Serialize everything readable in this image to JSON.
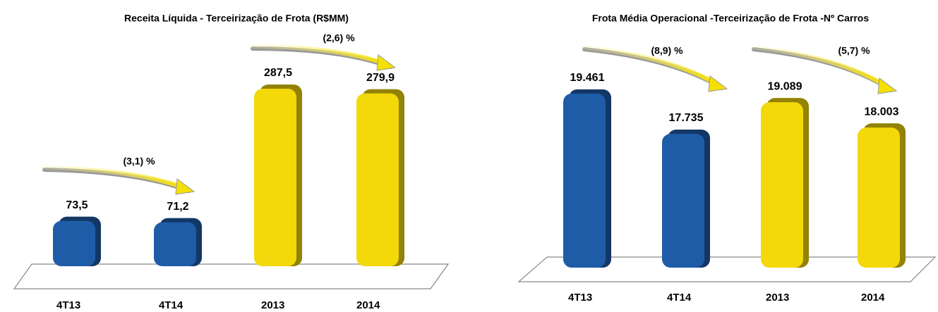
{
  "chart_data": [
    {
      "type": "bar",
      "title": "Receita Líquida - Terceirização de Frota (R$MM)",
      "categories": [
        "4T13",
        "4T14",
        "2013",
        "2014"
      ],
      "values": [
        73.5,
        71.2,
        287.5,
        279.9
      ],
      "value_labels": [
        "73,5",
        "71,2",
        "287,5",
        "279,9"
      ],
      "colors": [
        "#1f5ca8",
        "#1f5ca8",
        "#f3d80a",
        "#f3d80a"
      ],
      "ylim": [
        0,
        300
      ],
      "annotations": [
        "(3,1) %",
        "(2,6) %"
      ]
    },
    {
      "type": "bar",
      "title": "Frota Média Operacional -Terceirização de Frota -Nº Carros",
      "categories": [
        "4T13",
        "4T14",
        "2013",
        "2014"
      ],
      "values": [
        19461,
        17735,
        19089,
        18003
      ],
      "value_labels": [
        "19.461",
        "17.735",
        "19.089",
        "18.003"
      ],
      "colors": [
        "#1f5ca8",
        "#1f5ca8",
        "#f3d80a",
        "#f3d80a"
      ],
      "ylim": [
        12000,
        20000
      ],
      "annotations": [
        "(8,9) %",
        "(5,7) %"
      ]
    }
  ]
}
